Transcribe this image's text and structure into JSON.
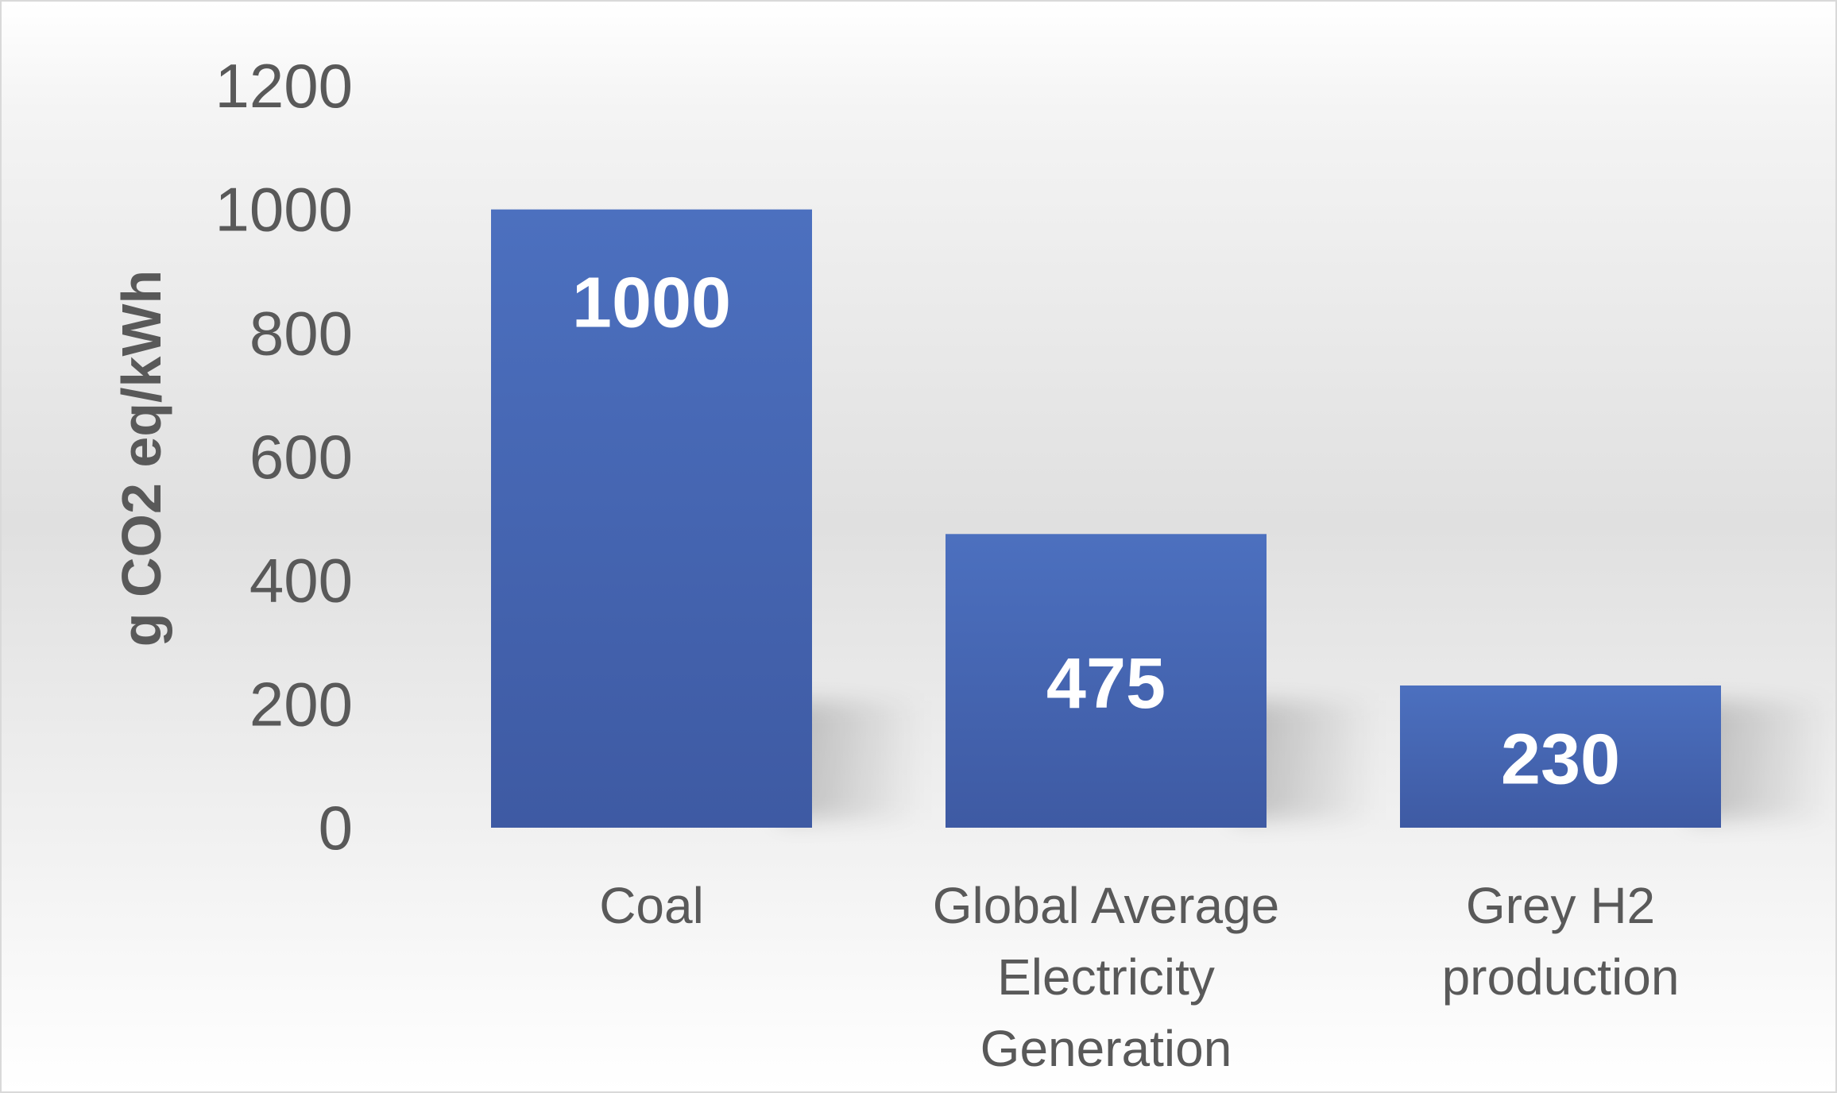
{
  "chart_data": {
    "type": "bar",
    "title": "",
    "xlabel": "",
    "ylabel": "g CO2 eq/kWh",
    "categories": [
      [
        "Coal"
      ],
      [
        "Global Average",
        "Electricity",
        "Generation"
      ],
      [
        "Grey H2",
        "production"
      ]
    ],
    "values": [
      1000,
      475,
      230
    ],
    "data_labels": [
      "1000",
      "475",
      "230"
    ],
    "yticks": [
      0,
      200,
      400,
      600,
      800,
      1000,
      1200
    ],
    "ylim": [
      0,
      1200
    ],
    "grid": false,
    "legend": "none",
    "bar_color": "#4a6cba",
    "bar_color_dark": "#3f5ca6",
    "text_color": "#595959",
    "label_color": "#ffffff"
  }
}
